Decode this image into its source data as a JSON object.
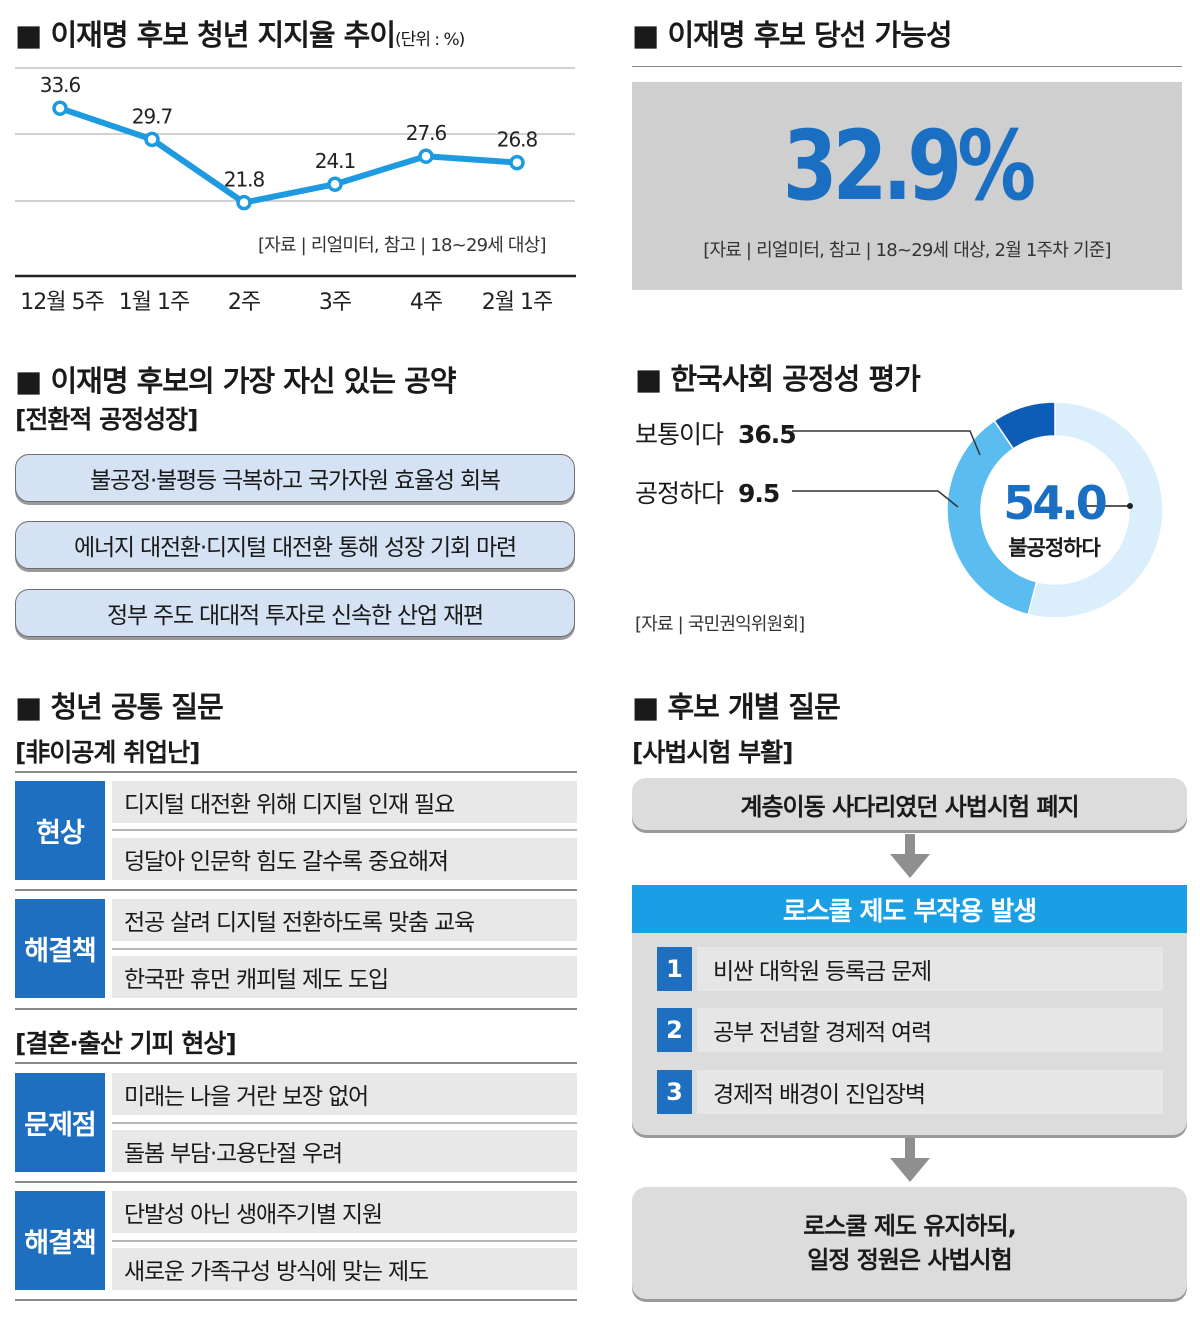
{
  "trend": {
    "title": "■ 이재명 후보 청년 지지율 추이",
    "unit": "(단위 : %)",
    "source": "[자료 | 리얼미터, 참고 | 18~29세 대상]"
  },
  "chart_data": [
    {
      "type": "line",
      "title": "■ 이재명 후보 청년 지지율 추이",
      "unit": "(단위 : %)",
      "categories": [
        "12월 5주",
        "1월 1주",
        "2주",
        "3주",
        "4주",
        "2월 1주"
      ],
      "values": [
        33.6,
        29.7,
        21.8,
        24.1,
        27.6,
        26.8
      ],
      "value_labels": [
        "33.6",
        "29.7",
        "21.8",
        "24.1",
        "27.6",
        "26.8"
      ],
      "grid": true,
      "ylim": [
        20,
        37
      ],
      "color": "#1e9be0"
    },
    {
      "type": "pie",
      "title": "■ 한국사회 공정성 평가",
      "labels": [
        "보통이다",
        "공정하다",
        "불공정하다"
      ],
      "values": [
        36.5,
        9.5,
        54.0
      ],
      "colors": [
        "#5bbcf0",
        "#0d5cb6",
        "#dbeefb"
      ]
    }
  ],
  "probability": {
    "title": "■ 이재명 후보 당선 가능성",
    "value": "32.9%",
    "source": "[자료 | 리얼미터, 참고 | 18~29세 대상, 2월 1주차 기준]"
  },
  "pledge": {
    "title": "■ 이재명 후보의 가장 자신 있는 공약",
    "subtitle": "[전환적 공정성장]",
    "items": [
      "불공정·불평등 극복하고 국가자원 효율성 회복",
      "에너지 대전환·디지털 대전환 통해 성장 기회 마련",
      "정부 주도 대대적 투자로 신속한 산업 재편"
    ]
  },
  "fairness": {
    "title": "■ 한국사회 공정성 평가",
    "normal_label": "보통이다",
    "normal_value": "36.5",
    "fair_label": "공정하다",
    "fair_value": "9.5",
    "unfair_value": "54.0",
    "unfair_label": "불공정하다",
    "source": "[자료 | 국민권익위원회]"
  },
  "common": {
    "title": "■ 청년 공통 질문",
    "sub1": "[非이공계 취업난]",
    "label_situation": "현상",
    "situation": [
      "디지털 대전환 위해 디지털 인재 필요",
      "덩달아 인문학 힘도 갈수록 중요해져"
    ],
    "label_solution": "해결책",
    "solution1": [
      "전공 살려 디지털 전환하도록 맞춤 교육",
      "한국판 휴먼 캐피털 제도 도입"
    ],
    "sub2": "[결혼·출산 기피 현상]",
    "label_problem": "문제점",
    "problem": [
      "미래는 나을 거란 보장 없어",
      "돌봄 부담·고용단절 우려"
    ],
    "solution2": [
      "단발성 아닌 생애주기별 지원",
      "새로운 가족구성 방식에 맞는 제도"
    ]
  },
  "individual": {
    "title": "■ 후보 개별 질문",
    "subtitle": "[사법시험 부활]",
    "box1": "계층이동 사다리였던 사법시험 폐지",
    "header": "로스쿨 제도 부작용 발생",
    "items": [
      {
        "num": "1",
        "text": "비싼 대학원 등록금 문제"
      },
      {
        "num": "2",
        "text": "공부 전념할 경제적 여력"
      },
      {
        "num": "3",
        "text": "경제적 배경이 진입장벽"
      }
    ],
    "final_line1": "로스쿨 제도 유지하되,",
    "final_line2": "일정 정원은 사법시험"
  }
}
